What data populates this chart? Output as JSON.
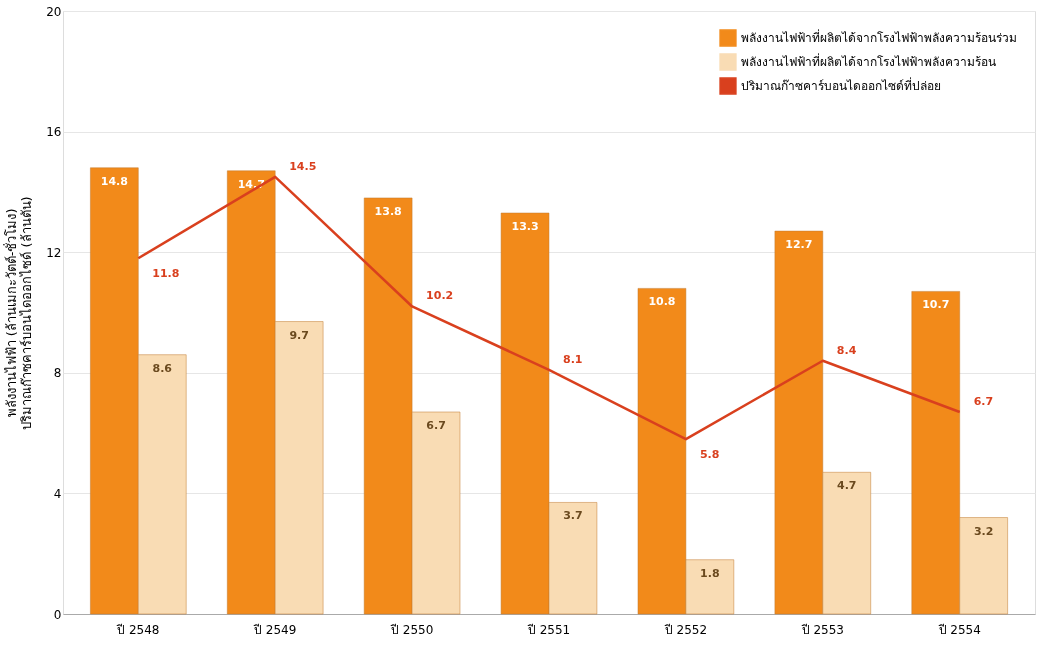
{
  "chart_data": {
    "type": "bar",
    "ylabel": "พลังงานไฟฟ้า (ล้านเมกะวัตต์-ชั่วโมง)\nปริมาณก๊าซคาร์บอนไดออกไซด์ (ล้านตัน)",
    "categories": [
      "ปี 2548",
      "ปี 2549",
      "ปี 2550",
      "ปี 2551",
      "ปี 2552",
      "ปี 2553",
      "ปี 2554"
    ],
    "series": [
      {
        "name": "พลังงานไฟฟ้าที่ผลิตได้จากโรงไฟฟ้าพลังความร้อนร่วม",
        "color": "#f28a1a",
        "values": [
          14.8,
          14.7,
          13.8,
          13.3,
          10.8,
          12.7,
          10.7
        ]
      },
      {
        "name": "พลังงานไฟฟ้าที่ผลิตได้จากโรงไฟฟ้าพลังความร้อน",
        "color": "#f9dcb4",
        "values": [
          8.6,
          9.7,
          6.7,
          3.7,
          1.8,
          4.7,
          3.2
        ]
      },
      {
        "name": "ปริมาณก๊าซคาร์บอนไดออกไซด์ที่ปล่อย",
        "type": "line",
        "color": "#d9401e",
        "values": [
          11.8,
          14.5,
          10.2,
          8.1,
          5.8,
          8.4,
          6.7
        ]
      }
    ],
    "ylim": [
      0,
      20
    ],
    "yticks": [
      0,
      4,
      8,
      12,
      16,
      20
    ],
    "grid": "y",
    "legend": "top right",
    "data_labels": true
  }
}
